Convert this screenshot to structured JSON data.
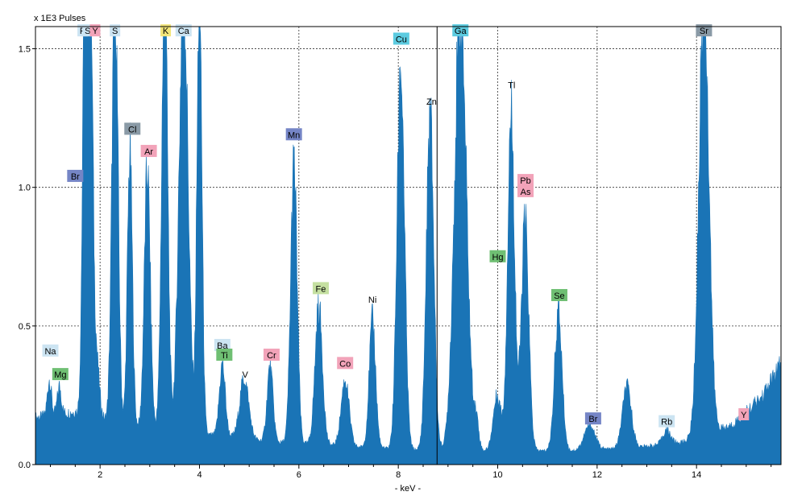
{
  "chart_data": {
    "type": "area",
    "title": "",
    "ylabel": "x 1E3 Pulses",
    "xlabel": "- keV -",
    "xlim": [
      0.7,
      15.7
    ],
    "ylim": [
      0,
      1.58
    ],
    "xticks": [
      2,
      4,
      6,
      8,
      10,
      12,
      14
    ],
    "yticks": [
      0.0,
      0.5,
      1.0,
      1.5
    ],
    "grid": true,
    "grid_style": "dotted",
    "fill_color": "#1a74b6",
    "cursor_x": 8.78,
    "baseline": [
      [
        0.7,
        0.17
      ],
      [
        1.5,
        0.19
      ],
      [
        2.5,
        0.14
      ],
      [
        3.5,
        0.12
      ],
      [
        4.5,
        0.1
      ],
      [
        5.5,
        0.08
      ],
      [
        6.5,
        0.07
      ],
      [
        7.5,
        0.06
      ],
      [
        8.7,
        0.05
      ],
      [
        9.7,
        0.05
      ],
      [
        10.7,
        0.05
      ],
      [
        11.7,
        0.05
      ],
      [
        12.7,
        0.06
      ],
      [
        13.7,
        0.08
      ],
      [
        14.7,
        0.14
      ],
      [
        15.3,
        0.24
      ],
      [
        15.7,
        0.36
      ]
    ],
    "peaks": [
      {
        "x": 0.98,
        "h": 0.13,
        "w": 0.04
      },
      {
        "x": 1.18,
        "h": 0.1,
        "w": 0.04
      },
      {
        "x": 1.7,
        "h": 1.6,
        "w": 0.05
      },
      {
        "x": 1.8,
        "h": 1.6,
        "w": 0.05
      },
      {
        "x": 1.92,
        "h": 0.22,
        "w": 0.06
      },
      {
        "x": 2.3,
        "h": 1.6,
        "w": 0.06
      },
      {
        "x": 2.6,
        "h": 0.98,
        "w": 0.05
      },
      {
        "x": 2.95,
        "h": 0.93,
        "w": 0.06
      },
      {
        "x": 3.3,
        "h": 1.6,
        "w": 0.06
      },
      {
        "x": 3.68,
        "h": 1.6,
        "w": 0.09
      },
      {
        "x": 4.0,
        "h": 1.6,
        "w": 0.05
      },
      {
        "x": 4.46,
        "h": 0.26,
        "w": 0.06
      },
      {
        "x": 4.9,
        "h": 0.22,
        "w": 0.09
      },
      {
        "x": 5.42,
        "h": 0.27,
        "w": 0.06
      },
      {
        "x": 5.9,
        "h": 1.0,
        "w": 0.065
      },
      {
        "x": 6.4,
        "h": 0.5,
        "w": 0.075
      },
      {
        "x": 6.93,
        "h": 0.24,
        "w": 0.08
      },
      {
        "x": 7.48,
        "h": 0.46,
        "w": 0.065
      },
      {
        "x": 8.05,
        "h": 1.38,
        "w": 0.075
      },
      {
        "x": 8.64,
        "h": 1.2,
        "w": 0.075
      },
      {
        "x": 9.25,
        "h": 1.6,
        "w": 0.12
      },
      {
        "x": 9.57,
        "h": 0.1,
        "w": 0.05
      },
      {
        "x": 9.99,
        "h": 0.2,
        "w": 0.08
      },
      {
        "x": 10.27,
        "h": 1.22,
        "w": 0.07
      },
      {
        "x": 10.55,
        "h": 0.82,
        "w": 0.075
      },
      {
        "x": 11.22,
        "h": 0.5,
        "w": 0.075
      },
      {
        "x": 11.85,
        "h": 0.09,
        "w": 0.11
      },
      {
        "x": 12.6,
        "h": 0.22,
        "w": 0.09
      },
      {
        "x": 13.4,
        "h": 0.05,
        "w": 0.08
      },
      {
        "x": 14.15,
        "h": 1.6,
        "w": 0.1
      }
    ],
    "element_labels": [
      {
        "text": "Na",
        "x": 1.0,
        "y": 0.41,
        "color": "#cce4f2"
      },
      {
        "text": "Mg",
        "x": 1.2,
        "y": 0.325,
        "color": "#6fbf73"
      },
      {
        "text": "Br",
        "x": 1.5,
        "y": 1.04,
        "color": "#7585c6"
      },
      {
        "text": "P",
        "x": 1.65,
        "y": 1.565,
        "color": "#cce4f2"
      },
      {
        "text": "S",
        "x": 1.75,
        "y": 1.565,
        "color": "#cce4f2"
      },
      {
        "text": "Y",
        "x": 1.9,
        "y": 1.565,
        "color": "#f2a3b9"
      },
      {
        "text": "S",
        "x": 2.3,
        "y": 1.565,
        "color": "#cce4f2"
      },
      {
        "text": "Cl",
        "x": 2.65,
        "y": 1.21,
        "color": "#8a9aa6"
      },
      {
        "text": "Ar",
        "x": 2.98,
        "y": 1.13,
        "color": "#f2a3b9"
      },
      {
        "text": "K",
        "x": 3.32,
        "y": 1.565,
        "color": "#f2e57a"
      },
      {
        "text": "Ca",
        "x": 3.68,
        "y": 1.565,
        "color": "#cce4f2"
      },
      {
        "text": "Ba",
        "x": 4.46,
        "y": 0.43,
        "color": "#cce4f2"
      },
      {
        "text": "Ti",
        "x": 4.5,
        "y": 0.395,
        "color": "#6fbf73"
      },
      {
        "text": "V",
        "x": 4.92,
        "y": 0.325,
        "color": ""
      },
      {
        "text": "Cr",
        "x": 5.45,
        "y": 0.395,
        "color": "#f2a3b9"
      },
      {
        "text": "Mn",
        "x": 5.9,
        "y": 1.19,
        "color": "#7585c6"
      },
      {
        "text": "Fe",
        "x": 6.44,
        "y": 0.635,
        "color": "#c5e0a1"
      },
      {
        "text": "Co",
        "x": 6.93,
        "y": 0.365,
        "color": "#f2a3b9"
      },
      {
        "text": "Ni",
        "x": 7.48,
        "y": 0.595,
        "color": ""
      },
      {
        "text": "Cu",
        "x": 8.06,
        "y": 1.535,
        "color": "#5ccbe0"
      },
      {
        "text": "Zn",
        "x": 8.67,
        "y": 1.31,
        "color": ""
      },
      {
        "text": "Ga",
        "x": 9.25,
        "y": 1.565,
        "color": "#5ccbe0"
      },
      {
        "text": "Hg",
        "x": 10.0,
        "y": 0.75,
        "color": "#6fbf73"
      },
      {
        "text": "Tl",
        "x": 10.28,
        "y": 1.37,
        "color": ""
      },
      {
        "text": "Pb",
        "x": 10.56,
        "y": 1.025,
        "color": "#f2a3b9"
      },
      {
        "text": "As",
        "x": 10.56,
        "y": 0.985,
        "color": "#f2a3b9"
      },
      {
        "text": "Se",
        "x": 11.24,
        "y": 0.61,
        "color": "#6fbf73"
      },
      {
        "text": "Br",
        "x": 11.92,
        "y": 0.165,
        "color": "#7585c6"
      },
      {
        "text": "Rb",
        "x": 13.4,
        "y": 0.155,
        "color": "#cce4f2"
      },
      {
        "text": "Sr",
        "x": 14.15,
        "y": 1.565,
        "color": "#8a9aa6"
      },
      {
        "text": "Y",
        "x": 14.95,
        "y": 0.18,
        "color": "#f2a3b9"
      }
    ]
  }
}
